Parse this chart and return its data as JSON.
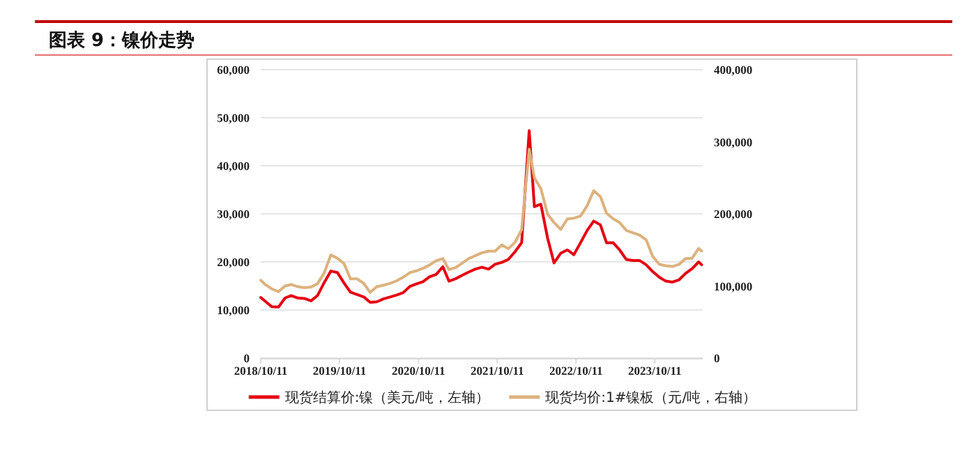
{
  "chart_data": {
    "type": "line",
    "title": "图表 9：镍价走势",
    "x": [
      "2018-10-11",
      "2018-11",
      "2018-12",
      "2019-01",
      "2019-02",
      "2019-03",
      "2019-04",
      "2019-05",
      "2019-06",
      "2019-07",
      "2019-08",
      "2019-09",
      "2019-10",
      "2019-11",
      "2019-12",
      "2020-01",
      "2020-02",
      "2020-03",
      "2020-04",
      "2020-05",
      "2020-06",
      "2020-07",
      "2020-08",
      "2020-09",
      "2020-10",
      "2020-11",
      "2020-12",
      "2021-01",
      "2021-02",
      "2021-03",
      "2021-04",
      "2021-05",
      "2021-06",
      "2021-07",
      "2021-08",
      "2021-09",
      "2021-10",
      "2021-11",
      "2021-12",
      "2022-01",
      "2022-02",
      "2022-03-08",
      "2022-04",
      "2022-05",
      "2022-06",
      "2022-07",
      "2022-08",
      "2022-09",
      "2022-10",
      "2022-11",
      "2022-12",
      "2023-01",
      "2023-02",
      "2023-03",
      "2023-04",
      "2023-05",
      "2023-06",
      "2023-07",
      "2023-08",
      "2023-09",
      "2023-10",
      "2023-11",
      "2023-12",
      "2024-01",
      "2024-02",
      "2024-03",
      "2024-04",
      "2024-05",
      "2024-05-15"
    ],
    "series": [
      {
        "name": "现货结算价:镍（美元/吨，左轴）",
        "color": "#e60012",
        "values": [
          12600,
          11800,
          10700,
          10600,
          12500,
          13000,
          12500,
          12400,
          11900,
          13000,
          15700,
          18100,
          17800,
          15600,
          13700,
          13200,
          12700,
          11600,
          11700,
          12300,
          12700,
          13100,
          13600,
          14900,
          15400,
          15900,
          16900,
          17400,
          19000,
          16000,
          16500,
          17200,
          17900,
          18500,
          18900,
          18500,
          19500,
          19900,
          20500,
          22100,
          24000,
          47300,
          31500,
          32000,
          25000,
          19800,
          21800,
          22500,
          21500,
          24000,
          26500,
          28500,
          27700,
          24000,
          24000,
          22500,
          20500,
          20300,
          20300,
          19400,
          18000,
          16800,
          16000,
          15800,
          16300,
          17600,
          18600,
          20000,
          19400
        ]
      },
      {
        "name": "现货均价:1#镍板（元/吨，右轴）",
        "color": "#dcb27e",
        "axis": "y2",
        "values": [
          107900,
          102000,
          96000,
          92000,
          100000,
          102000,
          99000,
          97500,
          98500,
          103000,
          118000,
          143000,
          138500,
          131000,
          109800,
          109800,
          103400,
          91000,
          99000,
          101000,
          103500,
          107000,
          112000,
          118500,
          121000,
          124500,
          129000,
          135000,
          138000,
          122700,
          125500,
          131500,
          138000,
          141900,
          146000,
          148300,
          148300,
          157000,
          151600,
          160500,
          178000,
          289600,
          250000,
          235000,
          199700,
          188000,
          178500,
          193000,
          194000,
          197000,
          211000,
          232000,
          224000,
          201000,
          193300,
          188000,
          177000,
          173700,
          170600,
          164000,
          141000,
          130000,
          128000,
          127000,
          130000,
          138000,
          138500,
          152000,
          148300
        ]
      }
    ],
    "xlim": [
      "2018-10-11",
      "2024-05-20"
    ],
    "xticks": [
      {
        "value": "2018-10-11",
        "label": "2018/10/11"
      },
      {
        "value": "2019-10-11",
        "label": "2019/10/11"
      },
      {
        "value": "2020-10-11",
        "label": "2020/10/11"
      },
      {
        "value": "2021-10-11",
        "label": "2021/10/11"
      },
      {
        "value": "2022-10-11",
        "label": "2022/10/11"
      },
      {
        "value": "2023-10-11",
        "label": "2023/10/11"
      }
    ],
    "ylim": [
      0,
      60000
    ],
    "yticks": [
      0,
      {
        "value": 10000,
        "label": "10,000"
      },
      {
        "value": 20000,
        "label": "20,000"
      },
      {
        "value": 30000,
        "label": "30,000"
      },
      {
        "value": 40000,
        "label": "40,000"
      },
      {
        "value": 50000,
        "label": "50,000"
      },
      {
        "value": 60000,
        "label": "60,000"
      }
    ],
    "y2lim": [
      0,
      400000
    ],
    "y2ticks": [
      0,
      {
        "value": 100000,
        "label": "100,000"
      },
      {
        "value": 200000,
        "label": "200,000"
      },
      {
        "value": 300000,
        "label": "300,000"
      },
      {
        "value": 400000,
        "label": "400,000"
      }
    ],
    "grid": "y",
    "legend": "bottom",
    "marker": "none",
    "line_style": "solid"
  }
}
